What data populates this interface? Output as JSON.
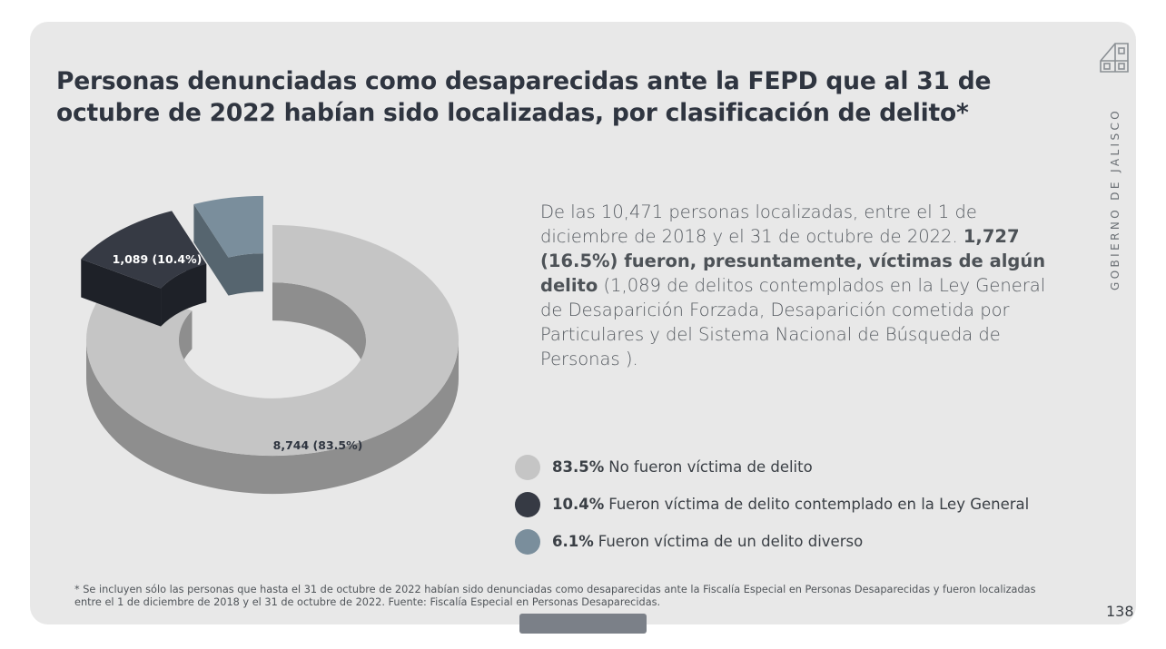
{
  "page": {
    "title": "Personas denunciadas como desaparecidas ante la FEPD que al 31 de octubre de 2022 habían sido localizadas, por clasificación de delito*",
    "brand_text": "GOBIERNO DE JALISCO",
    "description": {
      "part1": "De las 10,471 personas localizadas, entre el 1 de diciembre de 2018 y el 31 de octubre de 2022. ",
      "highlight": "1,727 (16.5%) fueron, presuntamente, víctimas de algún delito",
      "part2": " (1,089 de delitos contemplados en la Ley General de Desaparición Forzada, Desaparición cometida por Particulares y del Sistema Nacional de Búsqueda de Personas )."
    },
    "footnote": "* Se incluyen sólo las personas que hasta el 31 de octubre de 2022 habían sido denunciadas como desaparecidas ante la Fiscalía Especial en Personas Desaparecidas y fueron localizadas entre el 1 de diciembre de 2018 y el 31 de octubre de 2022.  Fuente: Fiscalía Especial en Personas Desaparecidas.",
    "page_number": "138"
  },
  "chart_data": {
    "type": "pie",
    "variant": "3d-donut",
    "slices": [
      {
        "value": 8744,
        "percent": 83.5,
        "data_label": "8,744 (83.5%)",
        "legend_pct": "83.5%",
        "legend_text": "No fueron víctima de delito",
        "color": "#c5c5c5",
        "side_color": "#8e8e8e",
        "exploded": false
      },
      {
        "value": 1089,
        "percent": 10.4,
        "data_label": "1,089 (10.4%)",
        "legend_pct": "10.4%",
        "legend_text": "Fueron víctima de delito contemplado en la Ley General",
        "color": "#363a44",
        "side_color": "#1e2128",
        "exploded": true
      },
      {
        "value": 638,
        "percent": 6.1,
        "data_label": "",
        "legend_pct": "6.1%",
        "legend_text": "Fueron víctima de un delito diverso",
        "color": "#7a8e9c",
        "side_color": "#56656f",
        "exploded": true
      }
    ]
  }
}
